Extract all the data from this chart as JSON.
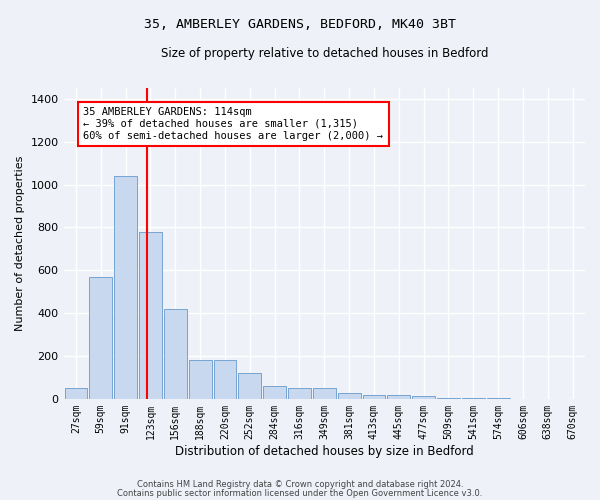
{
  "title1": "35, AMBERLEY GARDENS, BEDFORD, MK40 3BT",
  "title2": "Size of property relative to detached houses in Bedford",
  "xlabel": "Distribution of detached houses by size in Bedford",
  "ylabel": "Number of detached properties",
  "categories": [
    "27sqm",
    "59sqm",
    "91sqm",
    "123sqm",
    "156sqm",
    "188sqm",
    "220sqm",
    "252sqm",
    "284sqm",
    "316sqm",
    "349sqm",
    "381sqm",
    "413sqm",
    "445sqm",
    "477sqm",
    "509sqm",
    "541sqm",
    "574sqm",
    "606sqm",
    "638sqm",
    "670sqm"
  ],
  "values": [
    50,
    570,
    1040,
    780,
    420,
    180,
    180,
    120,
    60,
    50,
    50,
    25,
    20,
    20,
    15,
    5,
    3,
    2,
    1,
    1,
    0
  ],
  "bar_color": "#c8d8ef",
  "bar_edgecolor": "#6699cc",
  "vline_x": 2.85,
  "vline_color": "red",
  "ylim": [
    0,
    1450
  ],
  "yticks": [
    0,
    200,
    400,
    600,
    800,
    1000,
    1200,
    1400
  ],
  "annotation_text": "35 AMBERLEY GARDENS: 114sqm\n← 39% of detached houses are smaller (1,315)\n60% of semi-detached houses are larger (2,000) →",
  "annotation_box_color": "white",
  "annotation_box_edgecolor": "red",
  "footer1": "Contains HM Land Registry data © Crown copyright and database right 2024.",
  "footer2": "Contains public sector information licensed under the Open Government Licence v3.0.",
  "bg_color": "#eef2f8",
  "plot_bg_color": "#eef2f8",
  "title1_fontsize": 9.5,
  "title2_fontsize": 8.5,
  "annot_fontsize": 7.5,
  "ylabel_fontsize": 8,
  "xlabel_fontsize": 8.5,
  "tick_fontsize": 7,
  "footer_fontsize": 6
}
